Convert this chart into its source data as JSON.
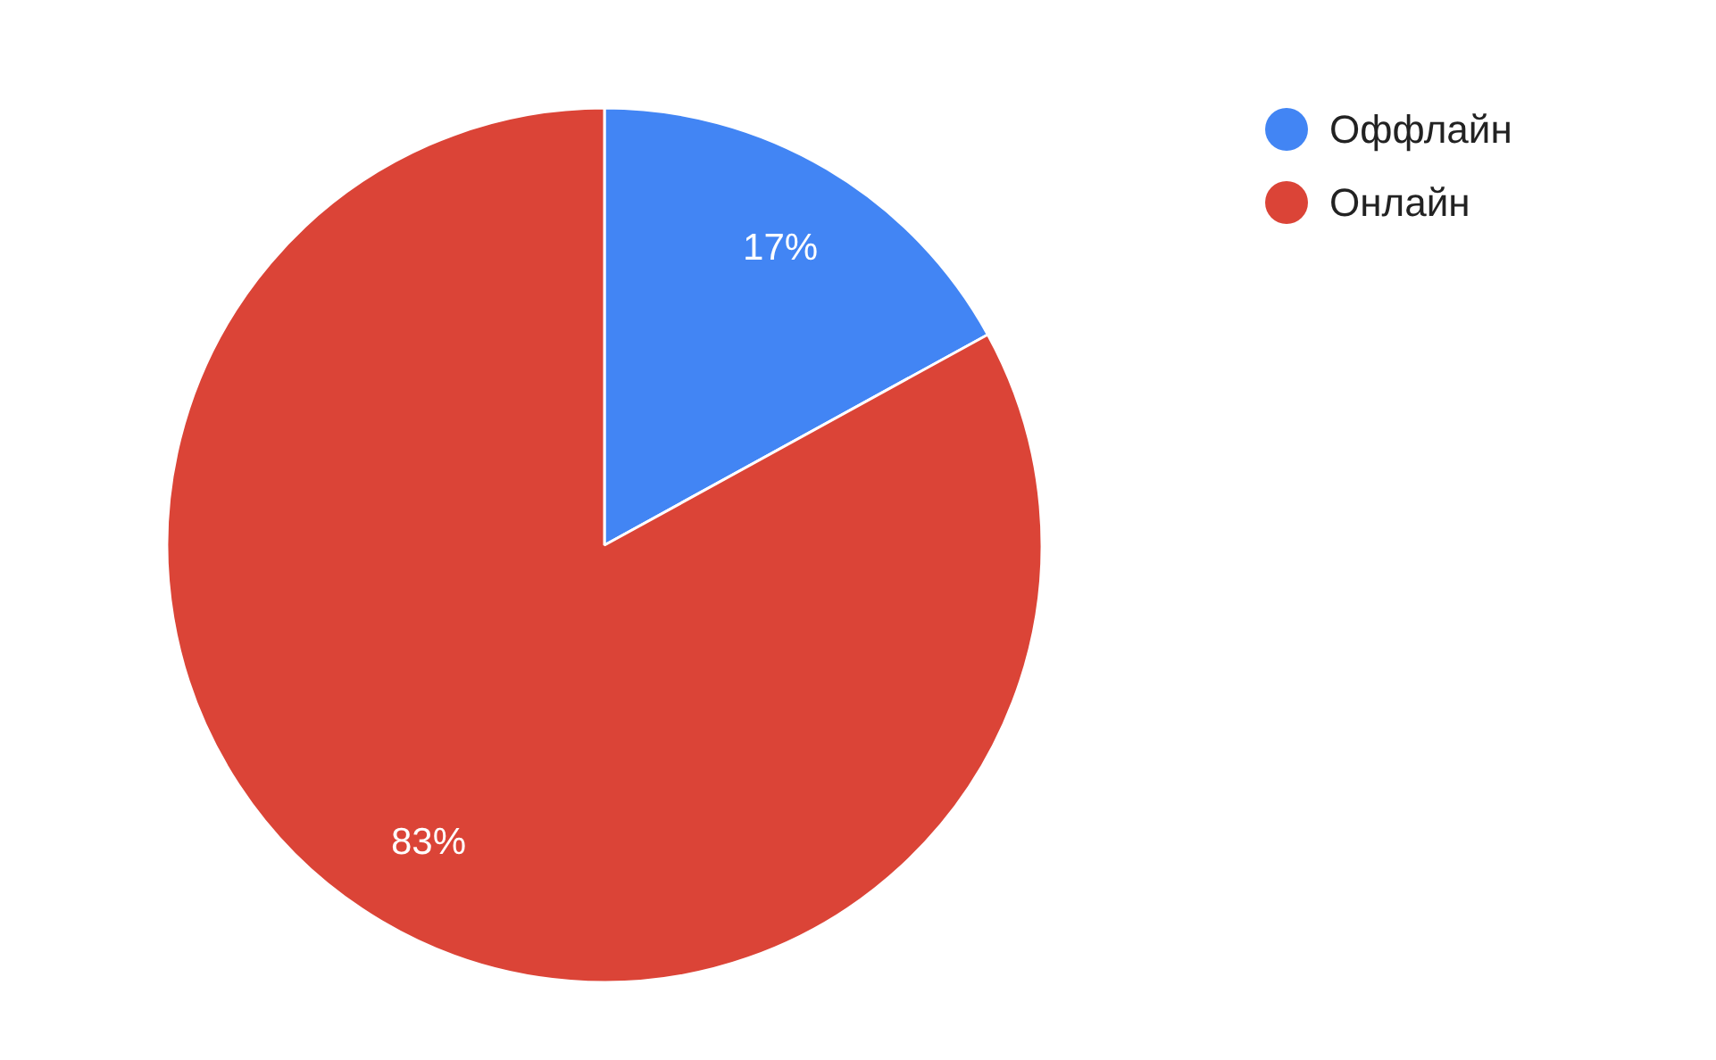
{
  "chart_data": {
    "type": "pie",
    "categories": [
      "Оффлайн",
      "Онлайн"
    ],
    "values": [
      17,
      83
    ],
    "colors": [
      "#4285f4",
      "#db4437"
    ],
    "value_labels": [
      "17%",
      "83%"
    ],
    "legend": "top right"
  }
}
